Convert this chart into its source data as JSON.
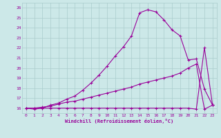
{
  "xlabel": "Windchill (Refroidissement éolien,°C)",
  "x": [
    0,
    1,
    2,
    3,
    4,
    5,
    6,
    7,
    8,
    9,
    10,
    11,
    12,
    13,
    14,
    15,
    16,
    17,
    18,
    19,
    20,
    21,
    22,
    23
  ],
  "line1": [
    16.0,
    15.9,
    16.0,
    16.3,
    16.5,
    16.9,
    17.2,
    17.8,
    18.5,
    19.3,
    20.2,
    21.2,
    22.1,
    23.2,
    25.5,
    25.8,
    25.6,
    24.8,
    23.8,
    23.2,
    20.8,
    20.9,
    17.9,
    16.3
  ],
  "line2": [
    16.0,
    16.0,
    16.0,
    16.0,
    16.0,
    16.0,
    16.0,
    16.0,
    16.0,
    16.0,
    16.0,
    16.0,
    16.0,
    16.0,
    16.0,
    16.0,
    16.0,
    16.0,
    16.0,
    16.0,
    16.0,
    15.9,
    22,
    16.3
  ],
  "line3": [
    16.0,
    16.0,
    16.1,
    16.2,
    16.4,
    16.6,
    16.7,
    16.9,
    17.1,
    17.3,
    17.5,
    17.7,
    17.9,
    18.1,
    18.4,
    18.6,
    18.8,
    19.0,
    19.2,
    19.5,
    20.0,
    20.4,
    15.9,
    16.3
  ],
  "ylim": [
    15.5,
    26.5
  ],
  "xlim": [
    -0.5,
    23.5
  ],
  "yticks": [
    16,
    17,
    18,
    19,
    20,
    21,
    22,
    23,
    24,
    25,
    26
  ],
  "xticks": [
    0,
    1,
    2,
    3,
    4,
    5,
    6,
    7,
    8,
    9,
    10,
    11,
    12,
    13,
    14,
    15,
    16,
    17,
    18,
    19,
    20,
    21,
    22,
    23
  ],
  "color": "#990099",
  "bg_color": "#cce8e8",
  "grid_color": "#aacccc"
}
